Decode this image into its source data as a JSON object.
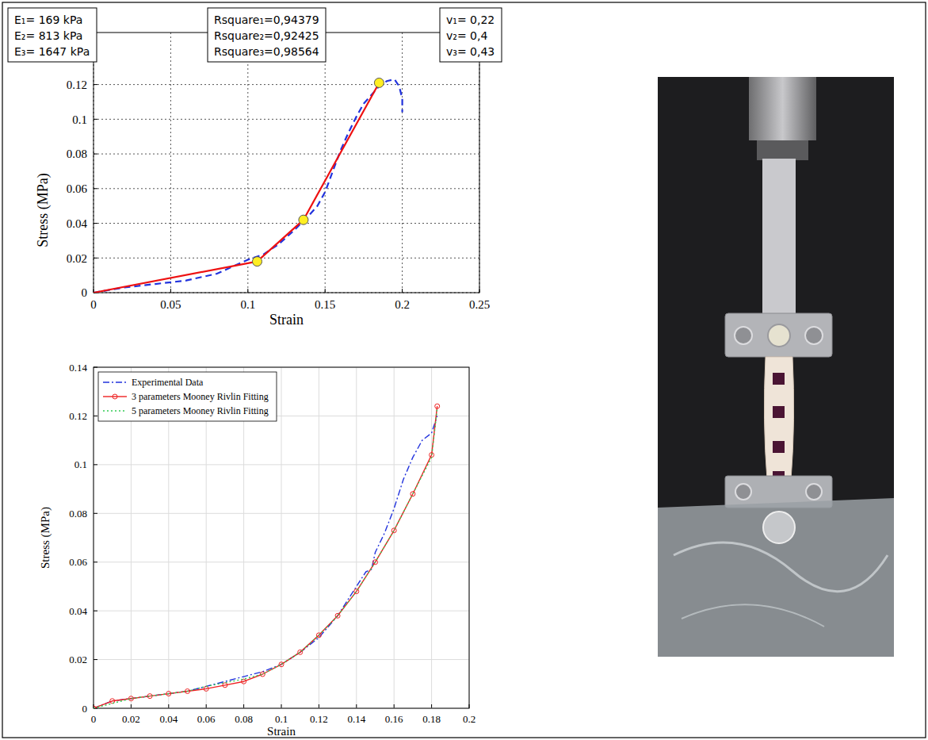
{
  "chart_data": [
    {
      "type": "line",
      "x_label": "Strain",
      "y_label": "Stress (MPa)",
      "xlim": [
        0,
        0.25
      ],
      "xticks": [
        0,
        0.05,
        0.1,
        0.15,
        0.2,
        0.25
      ],
      "ylim": [
        0,
        0.15
      ],
      "yticks": [
        0,
        0.02,
        0.04,
        0.06,
        0.08,
        0.1,
        0.12
      ],
      "grid": true,
      "annotations": [
        [
          "E₁= 169 kPa",
          "E₂= 813 kPa",
          "E₃= 1647 kPa"
        ],
        [
          "Rsquare₁=0,94379",
          "Rsquare₂=0,92425",
          "Rsquare₃=0,98564"
        ],
        [
          "v₁= 0,22",
          "v₂= 0,4",
          "v₃= 0,43"
        ]
      ],
      "series": [
        {
          "color": "#2233dd",
          "line_style": "dashed",
          "x": [
            0,
            0.02,
            0.04,
            0.06,
            0.08,
            0.1,
            0.11,
            0.12,
            0.13,
            0.14,
            0.145,
            0.15,
            0.155,
            0.16,
            0.165,
            0.17,
            0.175,
            0.18,
            0.185,
            0.19,
            0.195,
            0.198,
            0.2,
            0.2
          ],
          "values": [
            0,
            0.003,
            0.005,
            0.007,
            0.011,
            0.019,
            0.022,
            0.028,
            0.036,
            0.045,
            0.05,
            0.058,
            0.07,
            0.082,
            0.092,
            0.101,
            0.109,
            0.114,
            0.119,
            0.122,
            0.123,
            0.119,
            0.112,
            0.104
          ]
        },
        {
          "color": "#ee1111",
          "line_style": "solid",
          "x": [
            0,
            0.106,
            0.136,
            0.185
          ],
          "values": [
            0,
            0.018,
            0.042,
            0.121
          ]
        },
        {
          "type": "scatter",
          "color": "#ffee22",
          "marker": "circle",
          "x": [
            0.106,
            0.136,
            0.185
          ],
          "values": [
            0.018,
            0.042,
            0.121
          ]
        }
      ]
    },
    {
      "type": "line",
      "x_label": "Strain",
      "y_label": "Stress (MPa)",
      "xlim": [
        0,
        0.2
      ],
      "xticks": [
        0,
        0.02,
        0.04,
        0.06,
        0.08,
        0.1,
        0.12,
        0.14,
        0.16,
        0.18,
        0.2
      ],
      "ylim": [
        0,
        0.14
      ],
      "yticks": [
        0,
        0.02,
        0.04,
        0.06,
        0.08,
        0.1,
        0.12,
        0.14
      ],
      "grid": true,
      "legend": "upper left",
      "series": [
        {
          "name": "Experimental Data",
          "color": "#2233dd",
          "line_style": "dashdot",
          "x": [
            0,
            0.01,
            0.02,
            0.03,
            0.04,
            0.05,
            0.06,
            0.07,
            0.08,
            0.09,
            0.1,
            0.11,
            0.12,
            0.13,
            0.14,
            0.145,
            0.148,
            0.15,
            0.155,
            0.16,
            0.165,
            0.17,
            0.175,
            0.18,
            0.183
          ],
          "values": [
            0,
            0.003,
            0.004,
            0.005,
            0.006,
            0.007,
            0.009,
            0.011,
            0.013,
            0.015,
            0.018,
            0.023,
            0.029,
            0.038,
            0.05,
            0.056,
            0.057,
            0.064,
            0.072,
            0.082,
            0.094,
            0.103,
            0.11,
            0.113,
            0.12
          ]
        },
        {
          "name": "3 parameters Mooney Rivlin Fitting",
          "color": "#ee2222",
          "line_style": "solid",
          "marker": "circle",
          "x": [
            0,
            0.01,
            0.02,
            0.03,
            0.04,
            0.05,
            0.06,
            0.07,
            0.08,
            0.09,
            0.1,
            0.11,
            0.12,
            0.13,
            0.14,
            0.15,
            0.16,
            0.17,
            0.18,
            0.183
          ],
          "values": [
            0,
            0.003,
            0.004,
            0.005,
            0.006,
            0.007,
            0.008,
            0.0095,
            0.011,
            0.014,
            0.018,
            0.023,
            0.03,
            0.038,
            0.048,
            0.06,
            0.073,
            0.088,
            0.104,
            0.124
          ]
        },
        {
          "name": "5 parameters Mooney Rivlin Fitting",
          "color": "#33cc55",
          "line_style": "dotted",
          "x": [
            0,
            0.01,
            0.02,
            0.03,
            0.04,
            0.05,
            0.06,
            0.07,
            0.08,
            0.09,
            0.1,
            0.11,
            0.12,
            0.13,
            0.14,
            0.15,
            0.16,
            0.17,
            0.18,
            0.183
          ],
          "values": [
            0,
            0.002,
            0.004,
            0.005,
            0.006,
            0.007,
            0.009,
            0.0105,
            0.012,
            0.014,
            0.018,
            0.023,
            0.03,
            0.038,
            0.048,
            0.06,
            0.073,
            0.088,
            0.103,
            0.123
          ]
        }
      ]
    }
  ]
}
